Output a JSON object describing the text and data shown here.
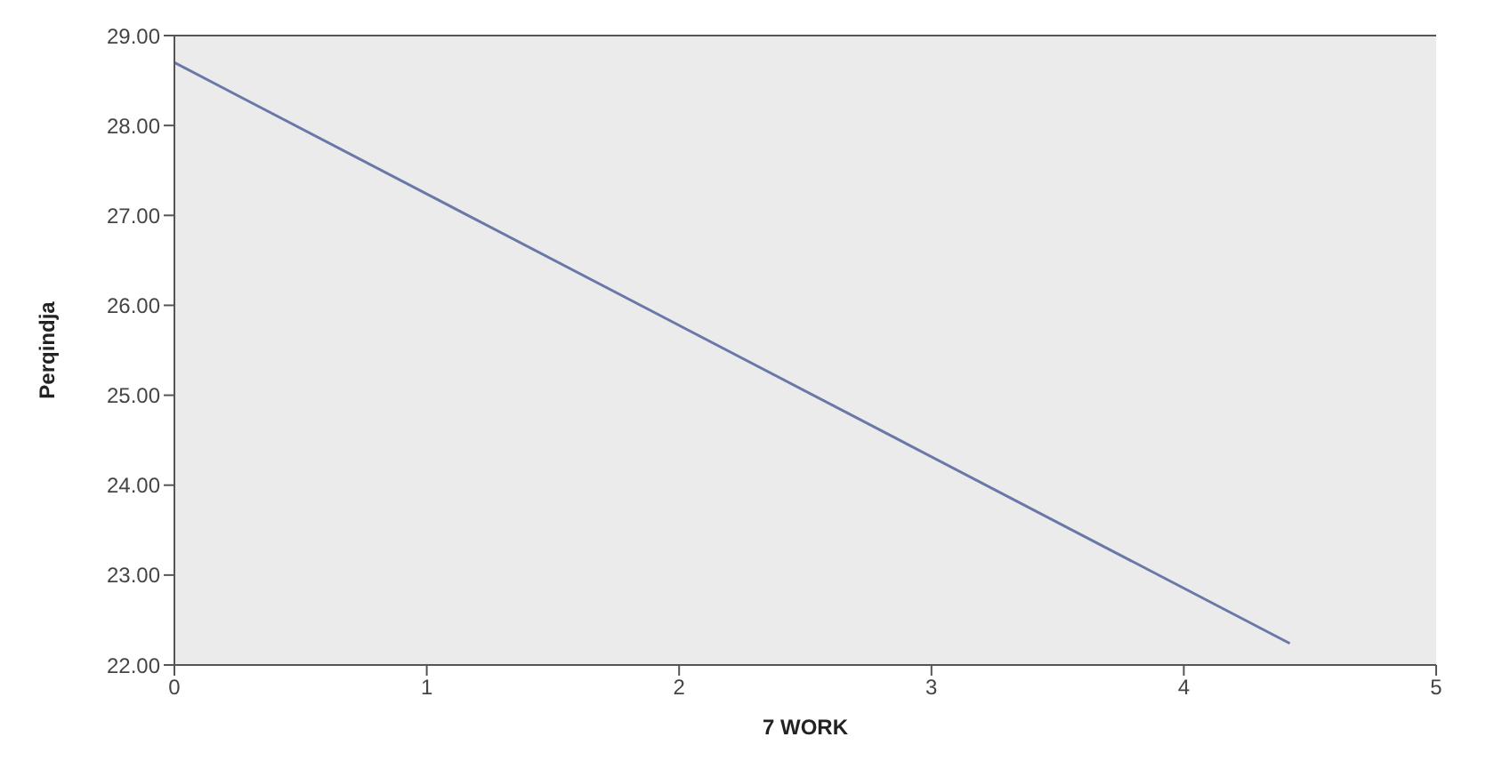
{
  "chart_data": {
    "type": "line",
    "xlabel": "7 WORK",
    "ylabel": "Perqindja",
    "x": [
      0,
      4.42
    ],
    "series": [
      {
        "color": "#6a78a8",
        "values": [
          28.7,
          22.24
        ]
      }
    ],
    "xlim": [
      0,
      5
    ],
    "xticks": [
      0,
      1,
      2,
      3,
      4,
      5
    ],
    "ylim": [
      22,
      29
    ],
    "yticks": [
      {
        "value": 22,
        "label": "22.00"
      },
      {
        "value": 23,
        "label": "23.00"
      },
      {
        "value": 24,
        "label": "24.00"
      },
      {
        "value": 25,
        "label": "25.00"
      },
      {
        "value": 26,
        "label": "26.00"
      },
      {
        "value": 27,
        "label": "27.00"
      },
      {
        "value": 28,
        "label": "28.00"
      },
      {
        "value": 29,
        "label": "29.00"
      }
    ],
    "marker": "none",
    "line_style": "solid"
  }
}
